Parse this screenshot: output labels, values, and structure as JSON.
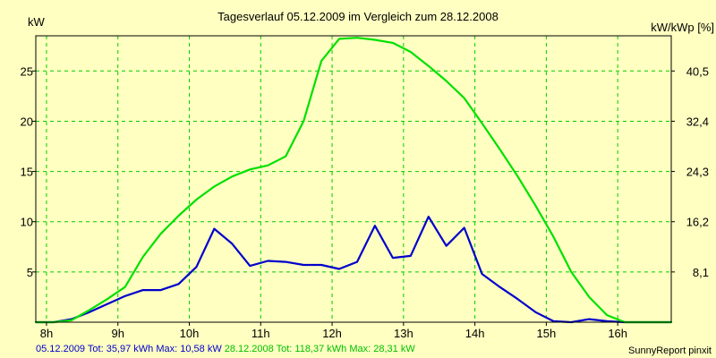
{
  "chart_data": {
    "type": "line",
    "title": "Tagesverlauf 05.12.2009 im Vergleich zum 28.12.2008",
    "ylabel_left": "kW",
    "ylabel_right": "kW/kWp [%]",
    "x_ticks": [
      "8h",
      "9h",
      "10h",
      "11h",
      "12h",
      "13h",
      "14h",
      "15h",
      "16h"
    ],
    "x_range": [
      7.85,
      16.75
    ],
    "y_range": [
      0,
      28.5
    ],
    "y_ticks_left": [
      "5",
      "10",
      "15",
      "20",
      "25"
    ],
    "y_ticks_right": [
      "8,1",
      "16,2",
      "24,3",
      "32,4",
      "40,5"
    ],
    "grid": true,
    "series": [
      {
        "name": "05.12.2009",
        "color": "#0000cc",
        "x": [
          7.85,
          8.1,
          8.35,
          8.6,
          8.85,
          9.1,
          9.35,
          9.6,
          9.85,
          10.1,
          10.35,
          10.6,
          10.85,
          11.1,
          11.35,
          11.6,
          11.85,
          12.1,
          12.35,
          12.6,
          12.85,
          13.1,
          13.35,
          13.6,
          13.85,
          14.1,
          14.35,
          14.6,
          14.85,
          15.1,
          15.35,
          15.6,
          15.85,
          16.1,
          16.75
        ],
        "y": [
          0.0,
          0.0,
          0.3,
          1.0,
          1.8,
          2.6,
          3.2,
          3.2,
          3.8,
          5.5,
          9.3,
          7.8,
          5.6,
          6.1,
          6.0,
          5.7,
          5.7,
          5.3,
          6.0,
          9.6,
          6.4,
          6.6,
          10.5,
          7.6,
          9.4,
          4.8,
          3.5,
          2.3,
          1.0,
          0.1,
          0.0,
          0.3,
          0.1,
          0.0,
          0.0
        ]
      },
      {
        "name": "28.12.2008",
        "color": "#00e000",
        "x": [
          7.85,
          8.1,
          8.35,
          8.6,
          8.85,
          9.1,
          9.35,
          9.6,
          9.85,
          10.1,
          10.35,
          10.6,
          10.85,
          11.1,
          11.35,
          11.6,
          11.85,
          12.1,
          12.35,
          12.6,
          12.85,
          13.1,
          13.35,
          13.6,
          13.85,
          14.1,
          14.35,
          14.6,
          14.85,
          15.1,
          15.35,
          15.6,
          15.85,
          16.1,
          16.3,
          16.75
        ],
        "y": [
          0.0,
          0.0,
          0.2,
          1.2,
          2.3,
          3.5,
          6.5,
          8.8,
          10.6,
          12.2,
          13.5,
          14.5,
          15.2,
          15.6,
          16.5,
          20.0,
          26.0,
          28.2,
          28.3,
          28.1,
          27.8,
          26.9,
          25.5,
          24.0,
          22.3,
          19.8,
          17.2,
          14.5,
          11.6,
          8.5,
          5.0,
          2.5,
          0.7,
          0.0,
          0.0,
          0.0
        ]
      }
    ],
    "legend": {
      "blue": "05.12.2009 Tot: 35,97 kWh Max: 10,58 kW",
      "green": "28.12.2008 Tot: 118,37 kWh Max: 28,31 kW"
    },
    "credit": "SunnyReport pinxit"
  }
}
